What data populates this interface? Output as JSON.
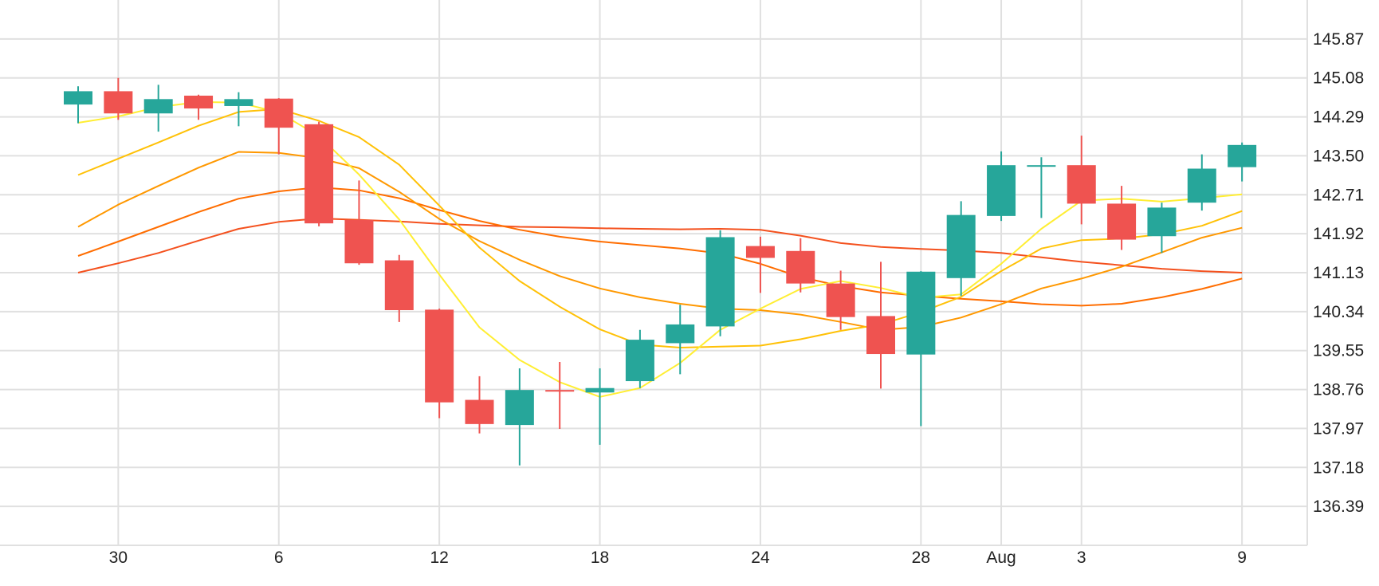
{
  "chart_data": {
    "type": "candlestick",
    "colors": {
      "up": "#26a69a",
      "down": "#ef5350",
      "grid": "#e0e0e0",
      "background": "#ffffff",
      "ma_lines": [
        "#ffee33",
        "#ffc107",
        "#ff9800",
        "#ff6d00",
        "#f4511e"
      ]
    },
    "ylim": [
      135.6,
      146.66
    ],
    "yticks": [
      "136.39",
      "137.18",
      "137.97",
      "138.76",
      "139.55",
      "140.34",
      "141.13",
      "141.92",
      "142.71",
      "143.50",
      "144.29",
      "145.08",
      "145.87"
    ],
    "xtick_labels": [
      {
        "i": 1,
        "label": "30"
      },
      {
        "i": 5,
        "label": "6"
      },
      {
        "i": 9,
        "label": "12"
      },
      {
        "i": 13,
        "label": "18"
      },
      {
        "i": 17,
        "label": "24"
      },
      {
        "i": 21,
        "label": "28"
      },
      {
        "i": 23,
        "label": "Aug"
      },
      {
        "i": 25,
        "label": "3"
      },
      {
        "i": 29,
        "label": "9"
      }
    ],
    "candles": [
      {
        "o": 144.54,
        "h": 144.91,
        "l": 144.16,
        "c": 144.81
      },
      {
        "o": 144.81,
        "h": 145.08,
        "l": 144.23,
        "c": 144.36
      },
      {
        "o": 144.36,
        "h": 144.94,
        "l": 143.99,
        "c": 144.65
      },
      {
        "o": 144.72,
        "h": 144.74,
        "l": 144.23,
        "c": 144.46
      },
      {
        "o": 144.51,
        "h": 144.79,
        "l": 144.1,
        "c": 144.65
      },
      {
        "o": 144.66,
        "h": 144.67,
        "l": 143.53,
        "c": 144.07
      },
      {
        "o": 144.14,
        "h": 144.19,
        "l": 142.07,
        "c": 142.13
      },
      {
        "o": 142.2,
        "h": 143.0,
        "l": 141.29,
        "c": 141.32
      },
      {
        "o": 141.38,
        "h": 141.49,
        "l": 140.13,
        "c": 140.37
      },
      {
        "o": 140.38,
        "h": 140.4,
        "l": 138.18,
        "c": 138.5
      },
      {
        "o": 138.55,
        "h": 139.03,
        "l": 137.87,
        "c": 138.06
      },
      {
        "o": 138.04,
        "h": 139.19,
        "l": 137.22,
        "c": 138.75
      },
      {
        "o": 138.75,
        "h": 139.32,
        "l": 137.96,
        "c": 138.73
      },
      {
        "o": 138.7,
        "h": 139.19,
        "l": 137.64,
        "c": 138.79
      },
      {
        "o": 138.93,
        "h": 139.97,
        "l": 138.79,
        "c": 139.77
      },
      {
        "o": 139.7,
        "h": 140.48,
        "l": 139.07,
        "c": 140.08
      },
      {
        "o": 140.04,
        "h": 141.99,
        "l": 139.84,
        "c": 141.85
      },
      {
        "o": 141.67,
        "h": 141.86,
        "l": 140.72,
        "c": 141.43
      },
      {
        "o": 141.57,
        "h": 141.83,
        "l": 140.73,
        "c": 140.91
      },
      {
        "o": 140.91,
        "h": 141.17,
        "l": 139.97,
        "c": 140.23
      },
      {
        "o": 140.25,
        "h": 141.35,
        "l": 138.78,
        "c": 139.48
      },
      {
        "o": 139.47,
        "h": 141.16,
        "l": 138.02,
        "c": 141.15
      },
      {
        "o": 141.02,
        "h": 142.58,
        "l": 140.66,
        "c": 142.3
      },
      {
        "o": 142.28,
        "h": 143.59,
        "l": 142.18,
        "c": 143.31
      },
      {
        "o": 143.3,
        "h": 143.47,
        "l": 142.24,
        "c": 143.31
      },
      {
        "o": 143.31,
        "h": 143.91,
        "l": 142.11,
        "c": 142.53
      },
      {
        "o": 142.53,
        "h": 142.89,
        "l": 141.59,
        "c": 141.8
      },
      {
        "o": 141.87,
        "h": 142.55,
        "l": 141.53,
        "c": 142.45
      },
      {
        "o": 142.55,
        "h": 143.53,
        "l": 142.39,
        "c": 143.24
      },
      {
        "o": 143.27,
        "h": 143.77,
        "l": 142.98,
        "c": 143.72
      }
    ],
    "series": [
      {
        "color": "#ffee33",
        "values": [
          144.17,
          144.3,
          144.49,
          144.59,
          144.58,
          144.38,
          143.9,
          143.12,
          142.21,
          141.09,
          140.02,
          139.36,
          138.91,
          138.61,
          138.79,
          139.3,
          139.97,
          140.4,
          140.8,
          140.96,
          140.82,
          140.62,
          140.69,
          141.31,
          142.02,
          142.59,
          142.63,
          142.57,
          142.64,
          142.72
        ]
      },
      {
        "color": "#ffc107",
        "values": [
          143.11,
          143.44,
          143.77,
          144.11,
          144.39,
          144.45,
          144.21,
          143.88,
          143.32,
          142.49,
          141.64,
          140.96,
          140.44,
          139.98,
          139.67,
          139.61,
          139.63,
          139.65,
          139.78,
          139.95,
          140.08,
          140.33,
          140.64,
          141.16,
          141.62,
          141.79,
          141.82,
          141.91,
          142.08,
          142.38
        ]
      },
      {
        "color": "#ff9800",
        "values": [
          142.06,
          142.51,
          142.89,
          143.26,
          143.58,
          143.56,
          143.45,
          143.25,
          142.77,
          142.22,
          141.77,
          141.39,
          141.06,
          140.81,
          140.63,
          140.5,
          140.4,
          140.37,
          140.28,
          140.13,
          139.97,
          140.03,
          140.22,
          140.49,
          140.81,
          141.01,
          141.25,
          141.54,
          141.84,
          142.04
        ]
      },
      {
        "color": "#ff6d00",
        "values": [
          141.47,
          141.76,
          142.06,
          142.36,
          142.63,
          142.78,
          142.86,
          142.8,
          142.64,
          142.4,
          142.18,
          142.0,
          141.86,
          141.76,
          141.69,
          141.62,
          141.52,
          141.31,
          141.04,
          140.86,
          140.73,
          140.66,
          140.6,
          140.55,
          140.49,
          140.46,
          140.5,
          140.63,
          140.8,
          141.01
        ]
      },
      {
        "color": "#f4511e",
        "values": [
          141.13,
          141.32,
          141.53,
          141.78,
          142.02,
          142.16,
          142.23,
          142.2,
          142.17,
          142.12,
          142.09,
          142.06,
          142.05,
          142.03,
          142.02,
          142.01,
          142.02,
          142.0,
          141.88,
          141.73,
          141.65,
          141.61,
          141.58,
          141.53,
          141.44,
          141.35,
          141.28,
          141.21,
          141.16,
          141.13
        ]
      }
    ]
  }
}
